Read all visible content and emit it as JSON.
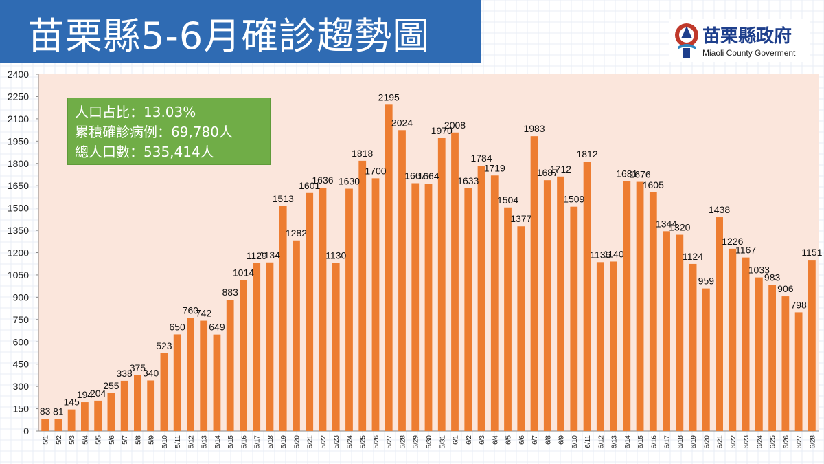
{
  "title": "苗栗縣5-6月確診趨勢圖",
  "logo": {
    "name_cn": "苗栗縣政府",
    "name_en": "Miaoli County Goverment"
  },
  "info_box": {
    "line1": "人口占比：13.03%",
    "line2": "累積確診病例：69,780人",
    "line3": "總人口數：535,414人"
  },
  "colors": {
    "banner": "#2f6bb3",
    "bar": "#ed7d31",
    "info_box": "#70ad47"
  },
  "chart_data": {
    "type": "bar",
    "categories": [
      "5/1",
      "5/2",
      "5/3",
      "5/4",
      "5/5",
      "5/6",
      "5/7",
      "5/8",
      "5/9",
      "5/10",
      "5/11",
      "5/12",
      "5/13",
      "5/14",
      "5/15",
      "5/16",
      "5/17",
      "5/18",
      "5/19",
      "5/20",
      "5/21",
      "5/22",
      "5/23",
      "5/24",
      "5/25",
      "5/26",
      "5/27",
      "5/28",
      "5/29",
      "5/30",
      "5/31",
      "6/1",
      "6/2",
      "6/3",
      "6/4",
      "6/5",
      "6/6",
      "6/7",
      "6/8",
      "6/9",
      "6/10",
      "6/11",
      "6/12",
      "6/13",
      "6/14",
      "6/15",
      "6/16",
      "6/17",
      "6/18",
      "6/19",
      "6/20",
      "6/21",
      "6/22",
      "6/23",
      "6/24",
      "6/25",
      "6/26",
      "6/27",
      "6/28"
    ],
    "values": [
      83,
      81,
      145,
      194,
      204,
      255,
      338,
      375,
      340,
      523,
      650,
      760,
      742,
      649,
      883,
      1014,
      1129,
      1134,
      1513,
      1282,
      1601,
      1636,
      1130,
      1630,
      1818,
      1700,
      2195,
      2024,
      1667,
      1664,
      1970,
      2008,
      1633,
      1784,
      1719,
      1504,
      1377,
      1983,
      1687,
      1712,
      1509,
      1812,
      1136,
      1140,
      1681,
      1676,
      1605,
      1344,
      1320,
      1124,
      959,
      1438,
      1226,
      1167,
      1033,
      983,
      906,
      798,
      1151
    ],
    "yticks": [
      0,
      150,
      300,
      450,
      600,
      750,
      900,
      1050,
      1200,
      1350,
      1500,
      1650,
      1800,
      1950,
      2100,
      2250,
      2400
    ],
    "ylim": [
      0,
      2400
    ],
    "xlabel": "",
    "ylabel": "",
    "grid": false,
    "legend": "none"
  }
}
